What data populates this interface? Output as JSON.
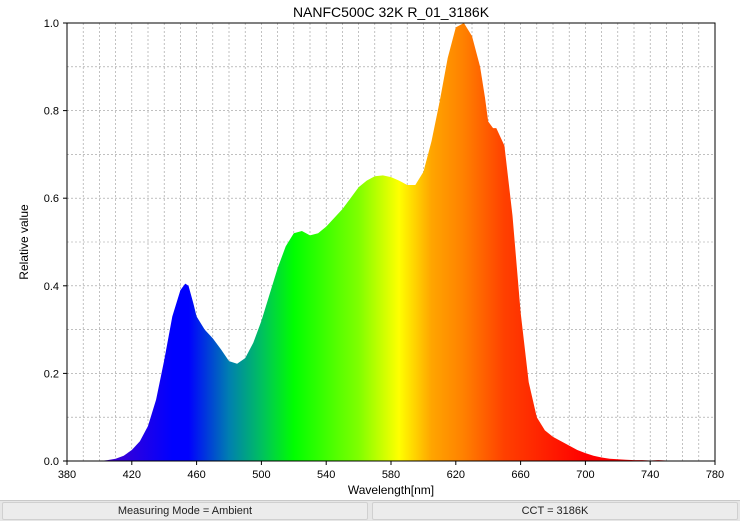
{
  "chart_data": {
    "type": "area",
    "title": "NANFC500C 32K R_01_3186K",
    "xlabel": "Wavelength[nm]",
    "ylabel": "Relative value",
    "xlim": [
      380,
      780
    ],
    "ylim": [
      0,
      1.0
    ],
    "x_ticks": [
      380,
      420,
      460,
      500,
      540,
      580,
      620,
      660,
      700,
      740,
      780
    ],
    "x_tick_labels": [
      "380",
      "420",
      "460",
      "500",
      "540",
      "580",
      "620",
      "660",
      "700",
      "740",
      "780"
    ],
    "y_ticks": [
      0,
      0.2,
      0.4,
      0.6,
      0.8,
      1.0
    ],
    "y_tick_labels": [
      "0.0",
      "0.2",
      "0.4",
      "0.6",
      "0.8",
      "1.0"
    ],
    "x_minor_step": 10,
    "y_minor_step": 0.1,
    "grid": true,
    "fill": "visible-spectrum gradient",
    "series": [
      {
        "x": [
          400,
          405,
          410,
          415,
          420,
          425,
          430,
          435,
          440,
          445,
          450,
          453,
          455,
          458,
          460,
          465,
          470,
          475,
          480,
          485,
          490,
          495,
          500,
          505,
          510,
          515,
          520,
          525,
          530,
          535,
          540,
          545,
          550,
          555,
          560,
          565,
          570,
          575,
          580,
          585,
          590,
          595,
          600,
          605,
          610,
          615,
          620,
          625,
          630,
          635,
          638,
          640,
          643,
          645,
          650,
          655,
          660,
          665,
          670,
          675,
          680,
          685,
          690,
          695,
          700,
          705,
          710,
          715,
          720,
          725,
          730,
          735,
          740,
          745,
          750,
          755,
          760,
          765,
          770,
          775,
          780
        ],
        "y": [
          0.0,
          0.002,
          0.005,
          0.012,
          0.025,
          0.045,
          0.08,
          0.14,
          0.23,
          0.33,
          0.39,
          0.405,
          0.4,
          0.36,
          0.33,
          0.3,
          0.28,
          0.255,
          0.228,
          0.222,
          0.235,
          0.27,
          0.32,
          0.38,
          0.44,
          0.49,
          0.52,
          0.525,
          0.515,
          0.52,
          0.535,
          0.555,
          0.575,
          0.6,
          0.625,
          0.64,
          0.65,
          0.652,
          0.648,
          0.64,
          0.63,
          0.63,
          0.66,
          0.73,
          0.82,
          0.92,
          0.99,
          1.0,
          0.97,
          0.9,
          0.83,
          0.775,
          0.76,
          0.76,
          0.72,
          0.56,
          0.34,
          0.18,
          0.1,
          0.07,
          0.055,
          0.045,
          0.035,
          0.025,
          0.018,
          0.012,
          0.008,
          0.005,
          0.004,
          0.003,
          0.002,
          0.002,
          0.001,
          0.002,
          0.001,
          0.0,
          0.001,
          0.0,
          0.0,
          0.0,
          0.0
        ]
      }
    ]
  },
  "status_bar": {
    "left": "Measuring Mode = Ambient",
    "right": "CCT = 3186K"
  }
}
